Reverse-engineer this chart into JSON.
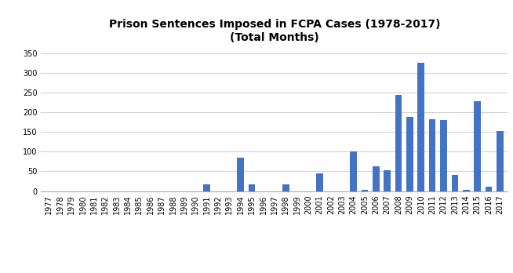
{
  "title_line1": "Prison Sentences Imposed in FCPA Cases (1978-2017)",
  "title_line2": "(Total Months)",
  "bar_color": "#4472C4",
  "years": [
    1977,
    1978,
    1979,
    1980,
    1981,
    1982,
    1983,
    1984,
    1985,
    1986,
    1987,
    1988,
    1989,
    1990,
    1991,
    1992,
    1993,
    1994,
    1995,
    1996,
    1997,
    1998,
    1999,
    2000,
    2001,
    2002,
    2003,
    2004,
    2005,
    2006,
    2007,
    2008,
    2009,
    2010,
    2011,
    2012,
    2013,
    2014,
    2015,
    2016,
    2017
  ],
  "values": [
    0,
    0,
    0,
    0,
    0,
    0,
    0,
    0,
    0,
    0,
    0,
    0,
    0,
    0,
    18,
    0,
    0,
    85,
    18,
    0,
    0,
    17,
    0,
    0,
    45,
    0,
    0,
    101,
    3,
    62,
    53,
    243,
    188,
    326,
    182,
    181,
    40,
    4,
    228,
    12,
    153
  ],
  "ylim": [
    0,
    360
  ],
  "yticks": [
    0,
    50,
    100,
    150,
    200,
    250,
    300,
    350
  ],
  "title_fontsize": 10,
  "tick_fontsize": 7,
  "background_color": "#ffffff",
  "grid_color": "#d3d3d3"
}
